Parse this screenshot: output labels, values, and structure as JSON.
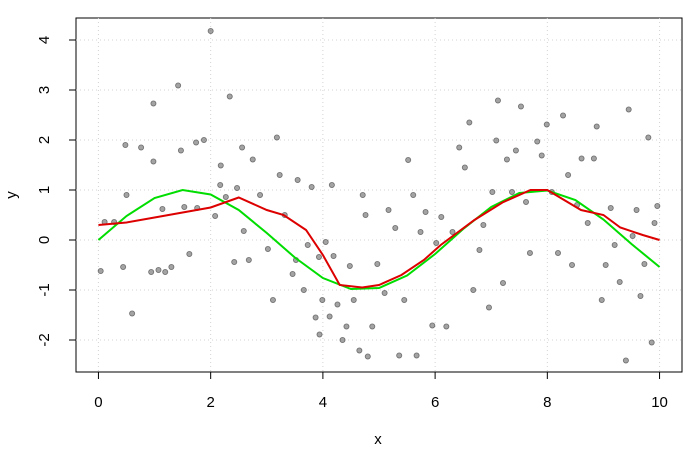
{
  "chart_data": {
    "type": "scatter",
    "xlabel": "x",
    "ylabel": "y",
    "xlim": [
      -0.4,
      10.4
    ],
    "ylim": [
      -2.64,
      4.44
    ],
    "xticks": [
      0,
      2,
      4,
      6,
      8,
      10
    ],
    "yticks": [
      -2,
      -1,
      0,
      1,
      2,
      3,
      4
    ],
    "grid": true,
    "series": [
      {
        "type": "scatter",
        "color": "#666666",
        "x": [
          0.04,
          0.11,
          0.28,
          0.44,
          0.48,
          0.5,
          0.6,
          0.76,
          0.94,
          0.98,
          0.98,
          1.07,
          1.14,
          1.19,
          1.3,
          1.42,
          1.47,
          1.53,
          1.62,
          1.74,
          1.76,
          1.88,
          2.0,
          2.08,
          2.17,
          2.18,
          2.27,
          2.34,
          2.42,
          2.47,
          2.56,
          2.59,
          2.68,
          2.75,
          2.88,
          3.02,
          3.11,
          3.18,
          3.23,
          3.32,
          3.46,
          3.52,
          3.55,
          3.66,
          3.73,
          3.8,
          3.87,
          3.93,
          3.94,
          3.99,
          4.05,
          4.12,
          4.16,
          4.19,
          4.26,
          4.35,
          4.42,
          4.48,
          4.55,
          4.65,
          4.71,
          4.76,
          4.8,
          4.88,
          4.97,
          5.1,
          5.17,
          5.29,
          5.36,
          5.45,
          5.52,
          5.61,
          5.67,
          5.74,
          5.83,
          5.95,
          6.02,
          6.11,
          6.2,
          6.31,
          6.43,
          6.53,
          6.61,
          6.68,
          6.79,
          6.86,
          6.96,
          7.02,
          7.09,
          7.12,
          7.21,
          7.28,
          7.37,
          7.44,
          7.53,
          7.62,
          7.69,
          7.82,
          7.9,
          7.99,
          8.08,
          8.19,
          8.28,
          8.37,
          8.44,
          8.53,
          8.61,
          8.72,
          8.83,
          8.88,
          8.97,
          9.04,
          9.13,
          9.2,
          9.29,
          9.4,
          9.45,
          9.52,
          9.59,
          9.66,
          9.73,
          9.8,
          9.86,
          9.91,
          9.96
        ],
        "values": [
          -0.62,
          0.36,
          0.36,
          -0.54,
          1.9,
          0.9,
          -1.47,
          1.85,
          -0.64,
          2.73,
          1.57,
          -0.6,
          0.62,
          -0.64,
          -0.54,
          3.09,
          1.79,
          0.66,
          -0.28,
          1.95,
          0.64,
          2.0,
          4.18,
          0.48,
          1.1,
          1.49,
          0.86,
          2.87,
          -0.44,
          1.04,
          1.85,
          0.18,
          -0.4,
          1.61,
          0.9,
          -0.18,
          -1.2,
          2.05,
          1.3,
          0.5,
          -0.68,
          -0.4,
          1.2,
          -1.0,
          -0.1,
          1.06,
          -1.55,
          -0.34,
          -1.89,
          -1.2,
          -0.04,
          -1.53,
          1.1,
          -0.32,
          -1.29,
          -2.0,
          -1.73,
          -0.52,
          -1.2,
          -2.21,
          0.9,
          0.5,
          -2.33,
          -1.73,
          -0.48,
          -1.06,
          0.6,
          0.24,
          -2.31,
          -1.2,
          1.6,
          0.9,
          -2.31,
          0.16,
          0.56,
          -1.71,
          -0.06,
          0.46,
          -1.73,
          0.16,
          1.85,
          1.45,
          2.35,
          -1.0,
          -0.2,
          0.3,
          -1.35,
          0.96,
          1.99,
          2.79,
          -0.86,
          1.61,
          0.96,
          1.79,
          2.67,
          0.76,
          -0.26,
          1.97,
          1.69,
          2.31,
          0.96,
          -0.26,
          2.49,
          1.3,
          -0.5,
          0.7,
          1.63,
          0.34,
          1.63,
          2.27,
          -1.2,
          -0.5,
          0.64,
          -0.1,
          -0.84,
          -2.41,
          2.61,
          0.08,
          0.6,
          -1.12,
          -0.48,
          2.05,
          -2.05,
          0.34,
          0.68
        ]
      },
      {
        "type": "line",
        "color": "#00dd00",
        "x": [
          0,
          0.5,
          1,
          1.5,
          2,
          2.5,
          3,
          3.5,
          4,
          4.5,
          5,
          5.5,
          6,
          6.5,
          7,
          7.5,
          8,
          8.5,
          9,
          9.5,
          10
        ],
        "values": [
          0,
          0.48,
          0.84,
          1.0,
          0.91,
          0.6,
          0.14,
          -0.35,
          -0.76,
          -0.98,
          -0.96,
          -0.71,
          -0.28,
          0.22,
          0.66,
          0.94,
          0.99,
          0.8,
          0.41,
          -0.08,
          -0.54
        ]
      },
      {
        "type": "line",
        "color": "#dd0000",
        "x": [
          0,
          0.5,
          1,
          1.5,
          2,
          2.5,
          3,
          3.3,
          3.7,
          4,
          4.3,
          4.7,
          5,
          5.4,
          5.8,
          6.1,
          6.7,
          7.2,
          7.7,
          8,
          8.6,
          9,
          9.3,
          9.7,
          10
        ],
        "values": [
          0.3,
          0.35,
          0.45,
          0.55,
          0.65,
          0.85,
          0.6,
          0.5,
          0.2,
          -0.3,
          -0.9,
          -0.95,
          -0.9,
          -0.7,
          -0.4,
          -0.1,
          0.4,
          0.75,
          1.0,
          1.0,
          0.6,
          0.5,
          0.25,
          0.1,
          0.0
        ]
      }
    ]
  }
}
